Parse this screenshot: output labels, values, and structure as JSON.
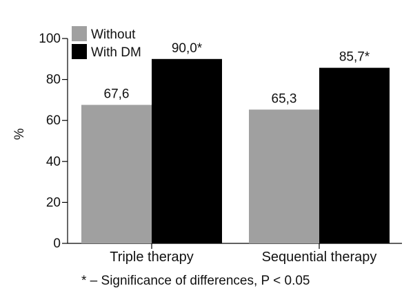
{
  "chart_data": {
    "type": "bar",
    "categories": [
      "Triple therapy",
      "Sequential therapy"
    ],
    "series": [
      {
        "name": "Without",
        "values": [
          67.6,
          65.3
        ],
        "labels": [
          "67,6",
          "65,3"
        ],
        "color": "#a0a0a0"
      },
      {
        "name": "With DM",
        "values": [
          90.0,
          85.7
        ],
        "labels": [
          "90,0*",
          "85,7*"
        ],
        "color": "#000000"
      }
    ],
    "ylabel": "%",
    "xlabel": "",
    "ylim": [
      0,
      100
    ],
    "yticks": [
      0,
      20,
      40,
      60,
      80,
      100
    ],
    "grid": false,
    "legend_position": "top-left"
  },
  "footnote": "* – Significance of differences, P < 0.05"
}
